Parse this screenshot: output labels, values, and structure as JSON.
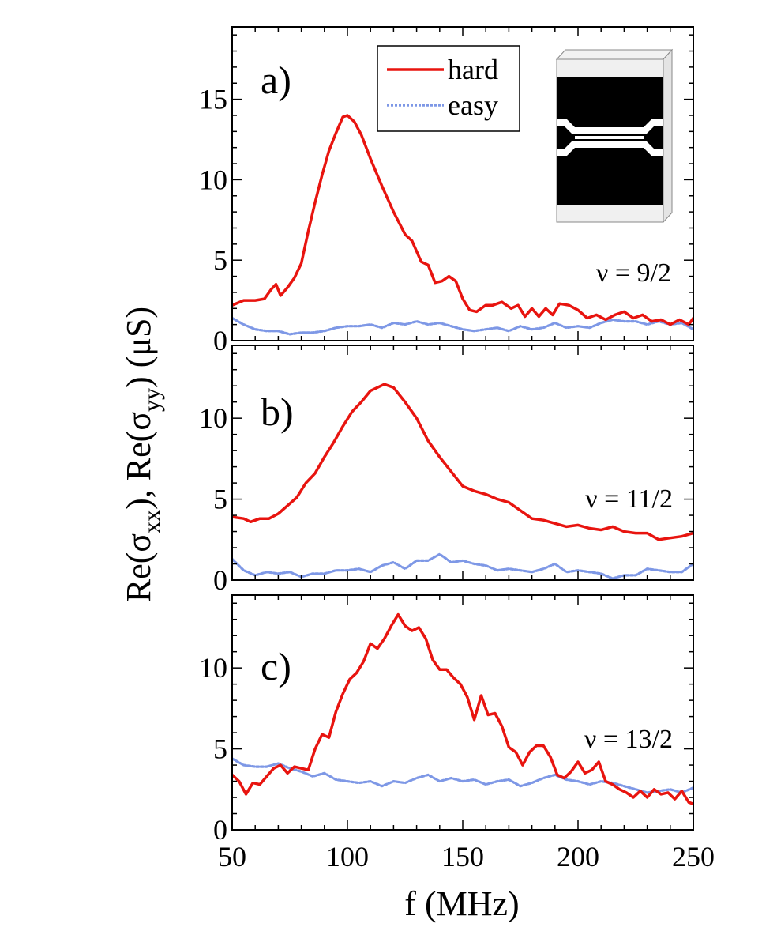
{
  "chart_data": [
    {
      "type": "line",
      "panel_label": "a)",
      "annotation": "ν = 9/2",
      "xlim": [
        50,
        250
      ],
      "ylim": [
        0,
        19.5
      ],
      "yticks": [
        0,
        5,
        10,
        15
      ],
      "legend": {
        "placement": "top-center",
        "entries": [
          "hard",
          "easy"
        ]
      },
      "series": [
        {
          "name": "hard",
          "color": "#e8140f",
          "style": "solid",
          "x": [
            50,
            55,
            60,
            64,
            67,
            69,
            71,
            74,
            77,
            80,
            83,
            86,
            89,
            92,
            95,
            98,
            100,
            103,
            106,
            110,
            115,
            120,
            125,
            128,
            132,
            135,
            138,
            141,
            144,
            147,
            150,
            153,
            156,
            160,
            163,
            167,
            171,
            174,
            177,
            180,
            183,
            186,
            189,
            192,
            196,
            200,
            204,
            208,
            212,
            216,
            220,
            224,
            228,
            232,
            236,
            240,
            244,
            248,
            250
          ],
          "values": [
            2.2,
            2.5,
            2.5,
            2.6,
            3.2,
            3.5,
            2.8,
            3.3,
            3.9,
            4.8,
            6.8,
            8.6,
            10.3,
            11.8,
            12.9,
            13.9,
            14.0,
            13.6,
            12.8,
            11.3,
            9.6,
            8.0,
            6.6,
            6.2,
            4.9,
            4.7,
            3.6,
            3.7,
            4.0,
            3.7,
            2.6,
            1.9,
            1.8,
            2.2,
            2.2,
            2.4,
            2.0,
            2.2,
            1.5,
            2.0,
            1.5,
            2.0,
            1.6,
            2.3,
            2.2,
            1.9,
            1.4,
            1.6,
            1.3,
            1.6,
            1.8,
            1.4,
            1.6,
            1.2,
            1.3,
            1.0,
            1.3,
            1.0,
            1.4
          ]
        },
        {
          "name": "easy",
          "color": "#7e98e6",
          "style": "dotted",
          "x": [
            50,
            55,
            60,
            65,
            70,
            75,
            80,
            85,
            90,
            95,
            100,
            105,
            110,
            115,
            120,
            125,
            130,
            135,
            140,
            145,
            150,
            155,
            160,
            165,
            170,
            175,
            180,
            185,
            190,
            195,
            200,
            205,
            210,
            215,
            220,
            225,
            230,
            235,
            240,
            245,
            250
          ],
          "values": [
            1.4,
            1.0,
            0.7,
            0.6,
            0.6,
            0.4,
            0.5,
            0.5,
            0.6,
            0.8,
            0.9,
            0.9,
            1.0,
            0.8,
            1.1,
            1.0,
            1.2,
            1.0,
            1.1,
            0.9,
            0.7,
            0.6,
            0.7,
            0.8,
            0.6,
            0.9,
            0.7,
            0.8,
            1.1,
            0.8,
            0.9,
            0.8,
            1.1,
            1.3,
            1.2,
            1.2,
            1.0,
            1.2,
            1.0,
            1.1,
            0.7
          ]
        }
      ]
    },
    {
      "type": "line",
      "panel_label": "b)",
      "annotation": "ν = 11/2",
      "xlim": [
        50,
        250
      ],
      "ylim": [
        0,
        14.5
      ],
      "yticks": [
        0,
        5,
        10
      ],
      "series": [
        {
          "name": "hard",
          "color": "#e8140f",
          "style": "solid",
          "x": [
            50,
            55,
            58,
            62,
            66,
            70,
            74,
            78,
            82,
            86,
            90,
            94,
            98,
            102,
            106,
            110,
            113,
            116,
            120,
            125,
            130,
            135,
            140,
            145,
            150,
            155,
            160,
            165,
            170,
            175,
            180,
            185,
            190,
            195,
            200,
            205,
            210,
            215,
            220,
            225,
            230,
            235,
            240,
            245,
            250
          ],
          "values": [
            3.9,
            3.8,
            3.6,
            3.8,
            3.8,
            4.1,
            4.6,
            5.1,
            6.0,
            6.6,
            7.6,
            8.5,
            9.5,
            10.4,
            11.0,
            11.7,
            11.9,
            12.1,
            11.9,
            11.0,
            10.0,
            8.6,
            7.6,
            6.7,
            5.8,
            5.5,
            5.3,
            5.0,
            4.8,
            4.3,
            3.8,
            3.7,
            3.5,
            3.3,
            3.4,
            3.2,
            3.1,
            3.3,
            3.0,
            2.9,
            2.9,
            2.5,
            2.6,
            2.7,
            2.9
          ]
        },
        {
          "name": "easy",
          "color": "#7e98e6",
          "style": "dotted",
          "x": [
            50,
            55,
            60,
            65,
            70,
            75,
            80,
            85,
            90,
            95,
            100,
            105,
            110,
            115,
            120,
            125,
            130,
            135,
            140,
            145,
            150,
            155,
            160,
            165,
            170,
            175,
            180,
            185,
            190,
            195,
            200,
            205,
            210,
            215,
            220,
            225,
            230,
            235,
            240,
            245,
            250
          ],
          "values": [
            1.3,
            0.6,
            0.3,
            0.5,
            0.4,
            0.5,
            0.2,
            0.4,
            0.4,
            0.6,
            0.6,
            0.7,
            0.5,
            0.9,
            1.1,
            0.7,
            1.2,
            1.2,
            1.6,
            1.1,
            1.2,
            1.0,
            0.9,
            0.6,
            0.7,
            0.6,
            0.5,
            0.7,
            1.0,
            0.5,
            0.6,
            0.5,
            0.4,
            0.1,
            0.3,
            0.3,
            0.7,
            0.6,
            0.5,
            0.5,
            1.0
          ]
        }
      ]
    },
    {
      "type": "line",
      "panel_label": "c)",
      "annotation": "ν = 13/2",
      "xlim": [
        50,
        250
      ],
      "ylim": [
        0,
        14.5
      ],
      "yticks": [
        0,
        5,
        10
      ],
      "xticks": [
        50,
        100,
        150,
        200,
        250
      ],
      "series": [
        {
          "name": "hard",
          "color": "#e8140f",
          "style": "solid",
          "x": [
            50,
            53,
            56,
            59,
            62,
            65,
            68,
            71,
            74,
            77,
            80,
            83,
            86,
            89,
            92,
            95,
            98,
            101,
            104,
            107,
            110,
            113,
            116,
            119,
            122,
            125,
            128,
            131,
            134,
            137,
            140,
            143,
            146,
            149,
            152,
            155,
            158,
            161,
            164,
            167,
            170,
            173,
            176,
            179,
            182,
            185,
            188,
            191,
            194,
            197,
            200,
            203,
            206,
            209,
            212,
            215,
            218,
            221,
            224,
            227,
            230,
            233,
            236,
            239,
            242,
            245,
            248,
            250
          ],
          "values": [
            3.4,
            3.0,
            2.2,
            2.9,
            2.8,
            3.3,
            3.8,
            4.0,
            3.5,
            3.9,
            3.8,
            3.7,
            5.0,
            5.9,
            5.7,
            7.3,
            8.4,
            9.3,
            9.7,
            10.4,
            11.5,
            11.2,
            11.8,
            12.6,
            13.3,
            12.6,
            12.3,
            12.5,
            11.8,
            10.5,
            9.9,
            9.9,
            9.4,
            9.0,
            8.2,
            6.8,
            8.3,
            7.1,
            7.2,
            6.4,
            5.1,
            4.8,
            4.0,
            4.8,
            5.2,
            5.2,
            4.5,
            3.4,
            3.2,
            3.6,
            4.2,
            3.5,
            3.7,
            4.2,
            3.0,
            2.8,
            2.5,
            2.3,
            2.0,
            2.4,
            2.0,
            2.5,
            2.2,
            2.3,
            1.9,
            2.4,
            1.7,
            1.6
          ]
        },
        {
          "name": "easy",
          "color": "#7e98e6",
          "style": "dotted",
          "x": [
            50,
            55,
            60,
            65,
            70,
            75,
            80,
            85,
            90,
            95,
            100,
            105,
            110,
            115,
            120,
            125,
            130,
            135,
            140,
            145,
            150,
            155,
            160,
            165,
            170,
            175,
            180,
            185,
            190,
            195,
            200,
            205,
            210,
            215,
            220,
            225,
            230,
            235,
            240,
            245,
            250
          ],
          "values": [
            4.4,
            4.0,
            3.9,
            3.9,
            4.1,
            3.8,
            3.6,
            3.3,
            3.5,
            3.1,
            3.0,
            2.9,
            3.0,
            2.7,
            3.0,
            2.9,
            3.2,
            3.4,
            3.0,
            3.2,
            3.0,
            3.1,
            2.8,
            3.0,
            3.1,
            2.7,
            2.9,
            3.2,
            3.4,
            3.1,
            3.0,
            2.8,
            3.0,
            2.9,
            2.7,
            2.5,
            2.3,
            2.4,
            2.5,
            2.3,
            2.6
          ]
        }
      ]
    }
  ],
  "axes": {
    "xlabel": "f  (MHz)",
    "ylabel_parts": [
      "Re(σ",
      "xx",
      "),  Re(σ",
      "yy",
      ")  (μS)"
    ]
  }
}
